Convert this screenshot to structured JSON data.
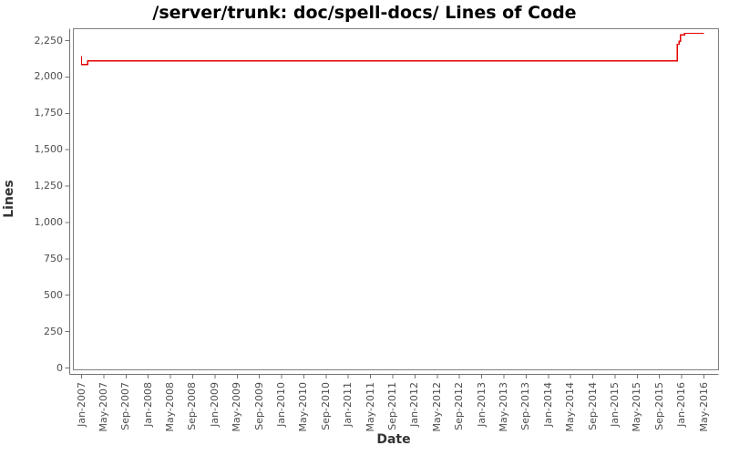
{
  "chart_data": {
    "type": "line",
    "title": "/server/trunk: doc/spell-docs/ Lines of Code",
    "xlabel": "Date",
    "ylabel": "Lines",
    "grid": false,
    "legend": false,
    "colors": {
      "series_line": "#e60000",
      "plot_border": "#808080",
      "axis_line": "#737373",
      "tick_label": "#4d4d4d"
    },
    "y_ticks": [
      0,
      250,
      500,
      750,
      1000,
      1250,
      1500,
      1750,
      2000,
      2250
    ],
    "y_tick_labels": [
      "0",
      "250",
      "500",
      "750",
      "1,000",
      "1,250",
      "1,500",
      "1,750",
      "2,000",
      "2,250"
    ],
    "ylim": [
      0,
      2330
    ],
    "x_tick_labels": [
      "Jan-2007",
      "May-2007",
      "Sep-2007",
      "Jan-2008",
      "May-2008",
      "Sep-2008",
      "Jan-2009",
      "May-2009",
      "Sep-2009",
      "Jan-2010",
      "May-2010",
      "Sep-2010",
      "Jan-2011",
      "May-2011",
      "Sep-2011",
      "Jan-2012",
      "May-2012",
      "Sep-2012",
      "Jan-2013",
      "May-2013",
      "Sep-2013",
      "Jan-2014",
      "May-2014",
      "Sep-2014",
      "Jan-2015",
      "May-2015",
      "Sep-2015",
      "Jan-2016",
      "May-2016"
    ],
    "x_months_per_tick": 4,
    "series": [
      {
        "name": "Lines of Code",
        "step": true,
        "points": [
          {
            "m": 0.0,
            "date": "2007-01",
            "value": 2145
          },
          {
            "m": 0.0,
            "date": "2007-01",
            "value": 2085
          },
          {
            "m": 1.1,
            "date": "2007-02",
            "value": 2085
          },
          {
            "m": 1.1,
            "date": "2007-02",
            "value": 2110
          },
          {
            "m": 107.2,
            "date": "2015-12",
            "value": 2110
          },
          {
            "m": 107.2,
            "date": "2015-12",
            "value": 2225
          },
          {
            "m": 107.5,
            "date": "2015-12",
            "value": 2225
          },
          {
            "m": 107.5,
            "date": "2015-12",
            "value": 2245
          },
          {
            "m": 107.8,
            "date": "2015-12",
            "value": 2245
          },
          {
            "m": 107.8,
            "date": "2015-12",
            "value": 2290
          },
          {
            "m": 108.5,
            "date": "2016-01",
            "value": 2290
          },
          {
            "m": 108.5,
            "date": "2016-01",
            "value": 2300
          },
          {
            "m": 112.0,
            "date": "2016-05",
            "value": 2300
          }
        ]
      }
    ]
  }
}
